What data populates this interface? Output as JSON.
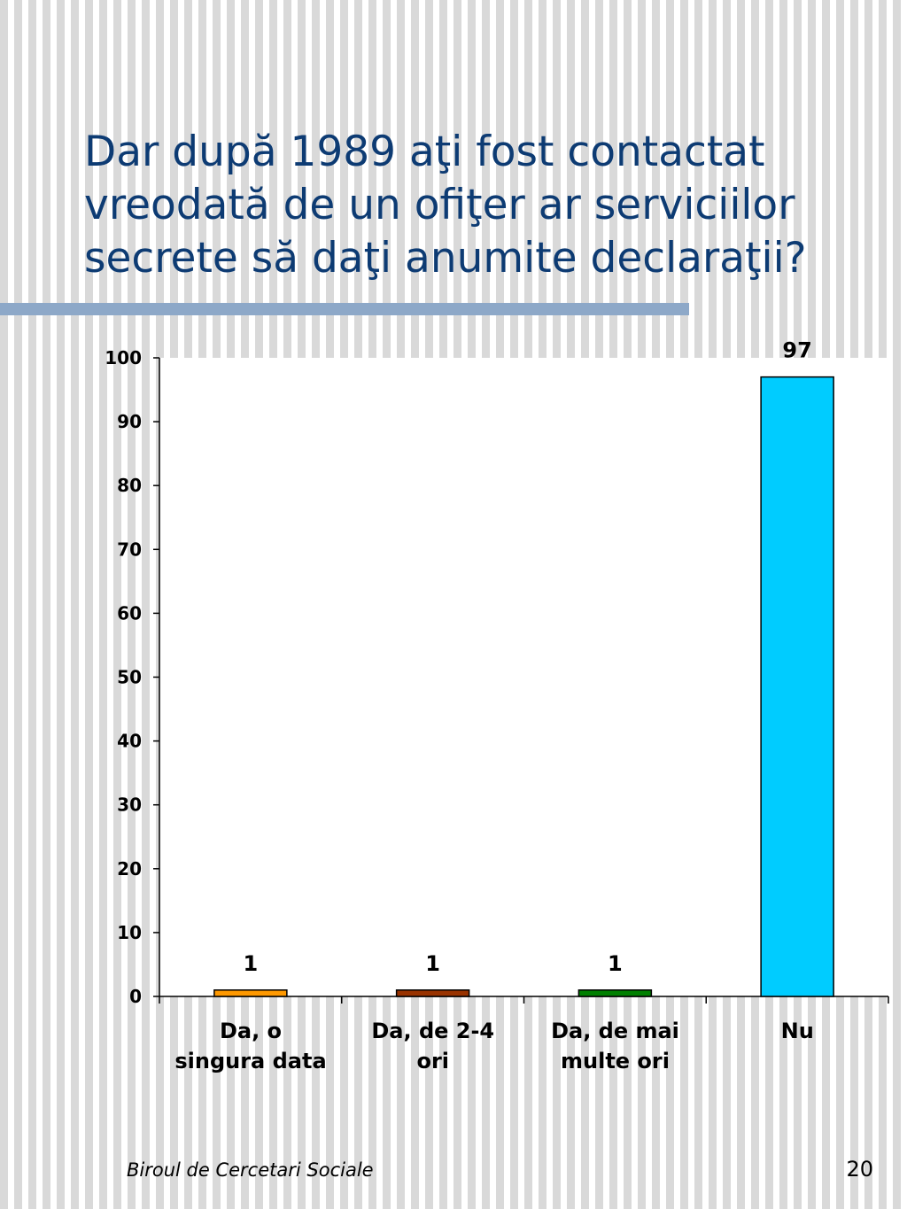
{
  "slide": {
    "title": "Dar după 1989 aţi fost contactat\nvreodată de un ofiţer ar serviciilor\nsecrete să daţi anumite declaraţii?",
    "footer": "Biroul de Cercetari Sociale",
    "page_number": "20"
  },
  "chart_data": {
    "type": "bar",
    "categories": [
      "Da, o\nsingura data",
      "Da, de 2-4\nori",
      "Da, de mai\nmulte ori",
      "Nu"
    ],
    "values": [
      1,
      1,
      1,
      97
    ],
    "data_labels": [
      "1",
      "1",
      "1",
      "97"
    ],
    "colors": [
      "#ff9900",
      "#993300",
      "#008000",
      "#00ccff"
    ],
    "ylim": [
      0,
      100
    ],
    "yticks": [
      0,
      10,
      20,
      30,
      40,
      50,
      60,
      70,
      80,
      90,
      100
    ],
    "grid": false,
    "legend": "none"
  }
}
